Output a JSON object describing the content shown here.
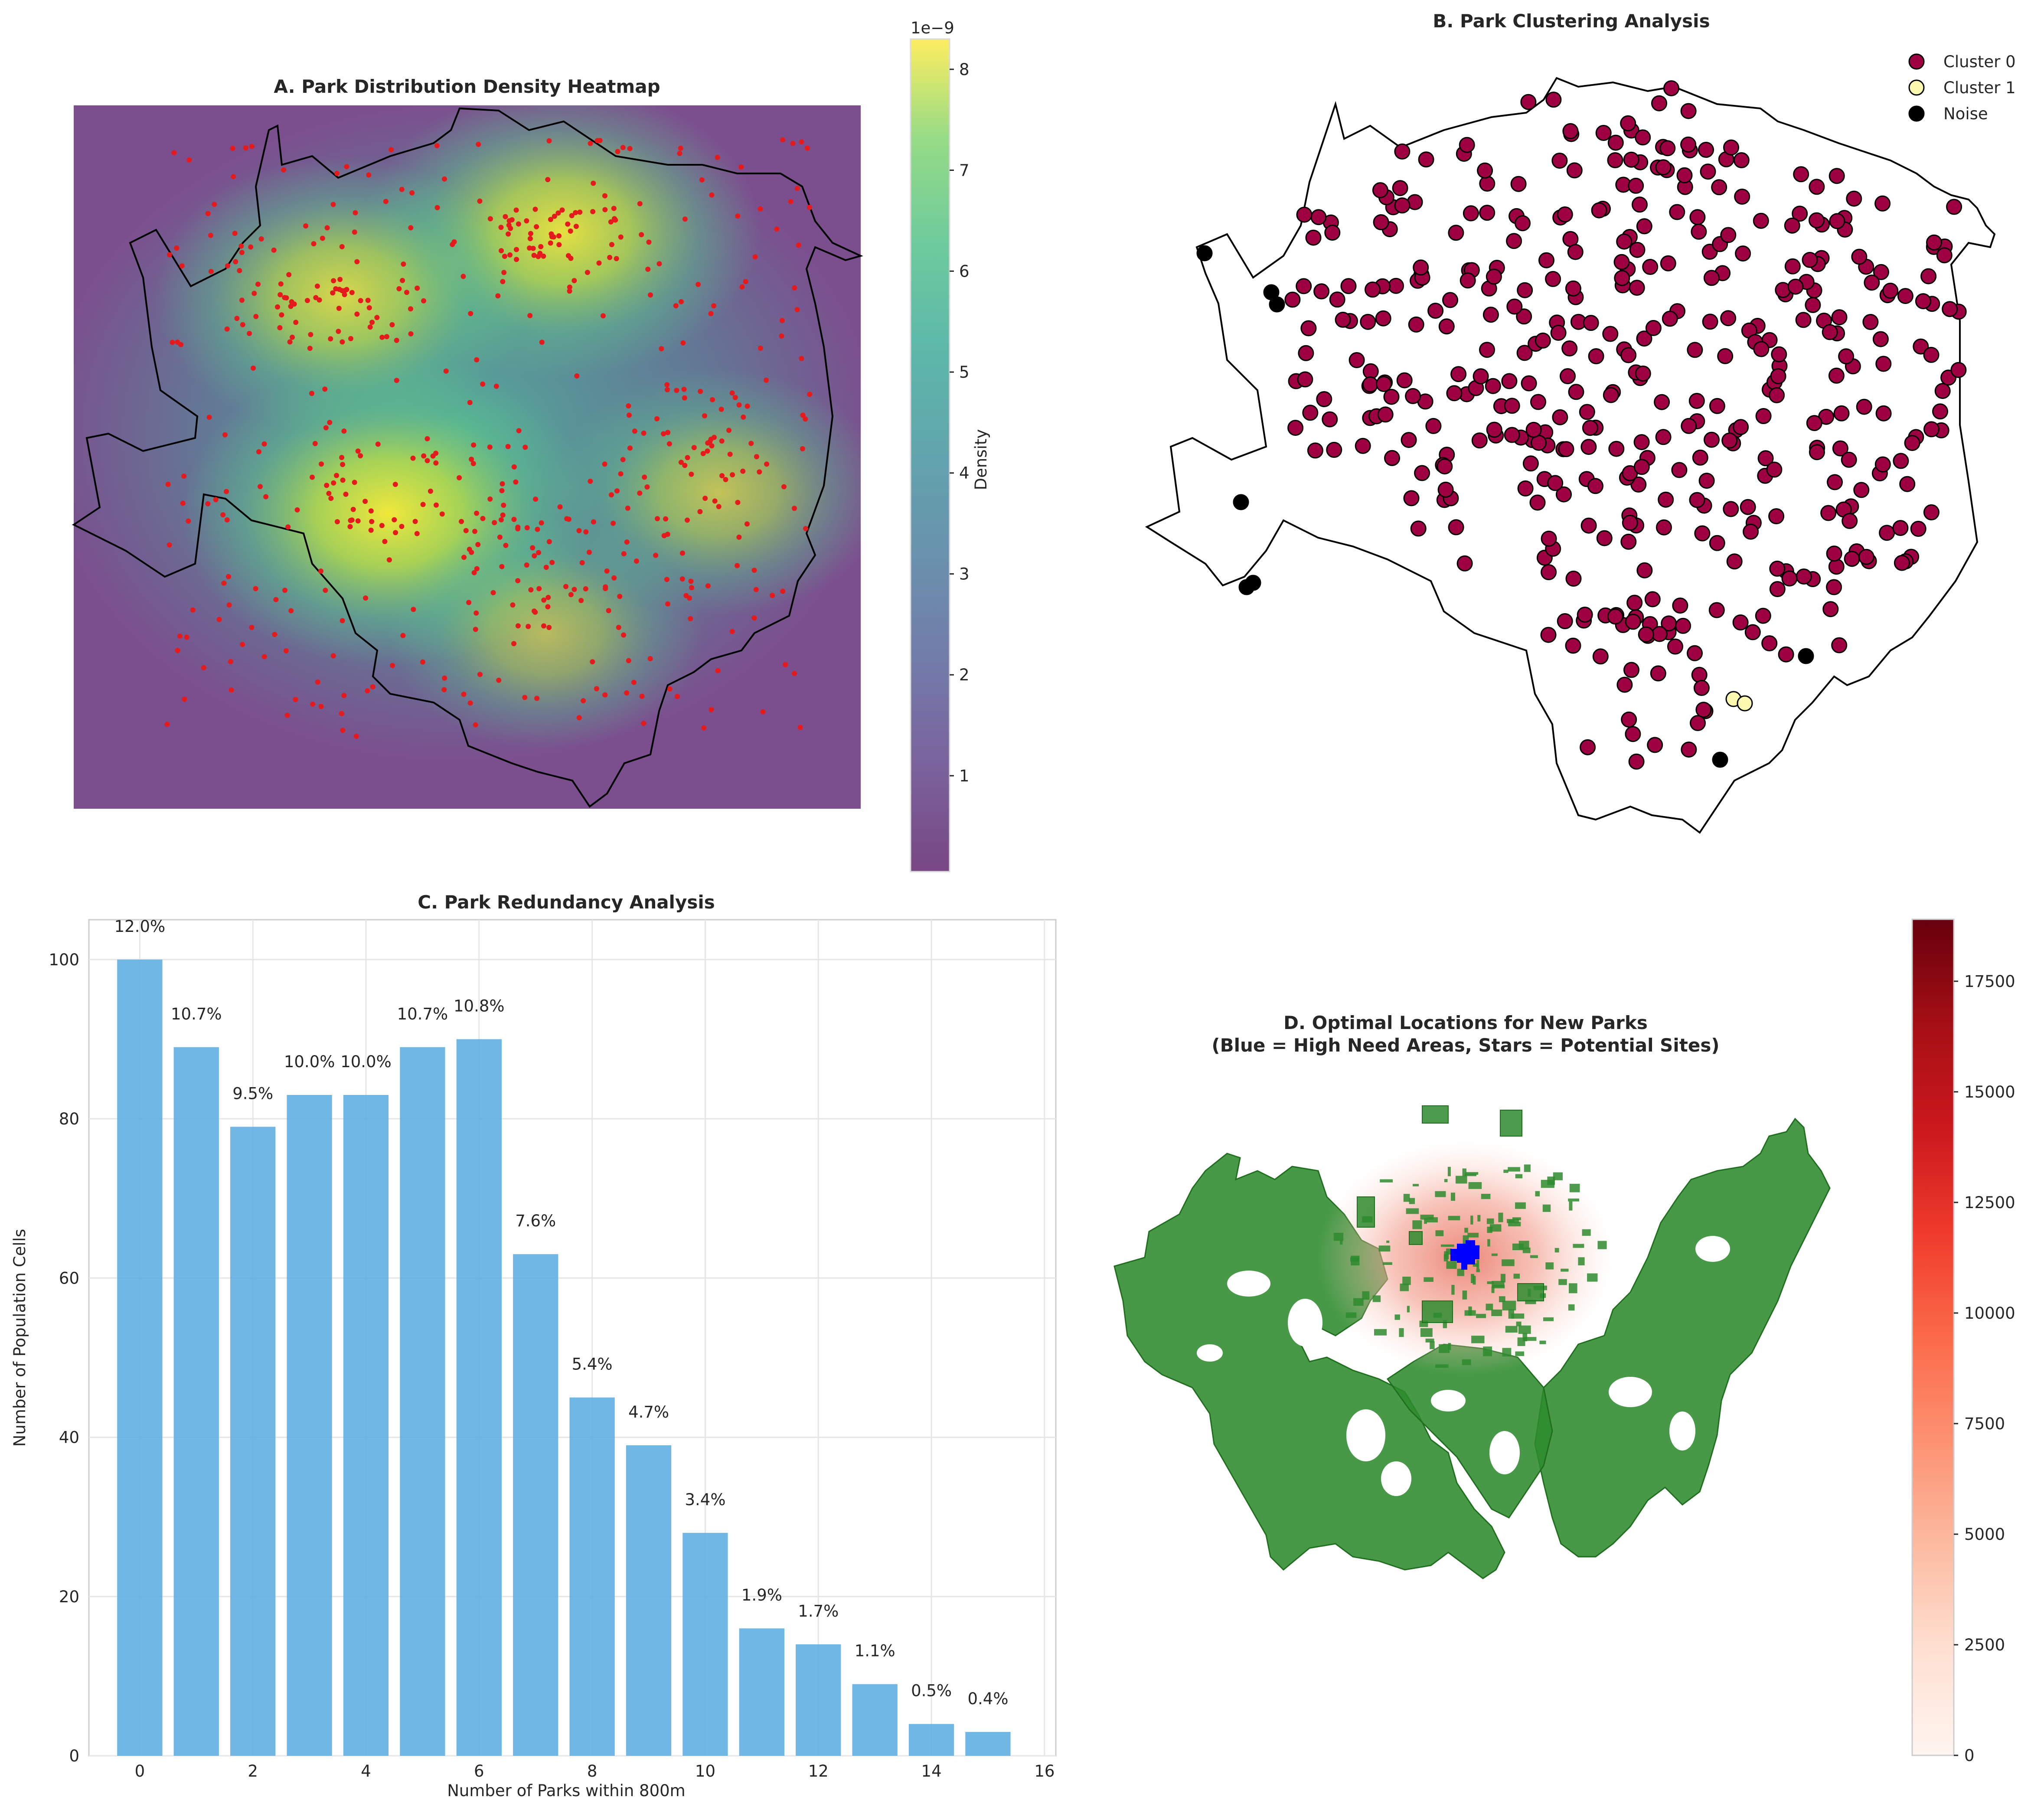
{
  "chart_data": [
    {
      "panel": "A",
      "type": "heatmap",
      "title": "A. Park Distribution Density Heatmap",
      "colorbar": {
        "label": "Density",
        "scale_label": "1e−9",
        "ticks": [
          "1",
          "2",
          "3",
          "4",
          "5",
          "6",
          "7",
          "8"
        ],
        "range": [
          0.05,
          8.3
        ],
        "colormap": "viridis"
      },
      "points_color": "#e41a1c",
      "hotspots": [
        {
          "x": 0.4,
          "y": 0.58,
          "level": 8.2
        },
        {
          "x": 0.62,
          "y": 0.18,
          "level": 7.6
        },
        {
          "x": 0.34,
          "y": 0.27,
          "level": 6.9
        },
        {
          "x": 0.82,
          "y": 0.55,
          "level": 5.6
        },
        {
          "x": 0.6,
          "y": 0.75,
          "level": 5.0
        }
      ]
    },
    {
      "panel": "B",
      "type": "scatter",
      "title": "B. Park Clustering Analysis",
      "legend": [
        {
          "name": "Cluster 0",
          "color": "#9e0142"
        },
        {
          "name": "Cluster 1",
          "color": "#fbf8b0"
        },
        {
          "name": "Noise",
          "color": "#000000"
        }
      ],
      "legend_position": "top-right"
    },
    {
      "panel": "C",
      "type": "bar",
      "title": "C. Park Redundancy Analysis",
      "xlabel": "Number of Parks within 800m",
      "ylabel": "Number of Population Cells",
      "x": [
        0,
        1,
        2,
        3,
        4,
        5,
        6,
        7,
        8,
        9,
        10,
        11,
        12,
        13,
        14,
        15
      ],
      "values": [
        100,
        89,
        79,
        83,
        83,
        89,
        90,
        63,
        45,
        39,
        28,
        16,
        14,
        9,
        4,
        3
      ],
      "labels": [
        "12.0%",
        "10.7%",
        "9.5%",
        "10.0%",
        "10.0%",
        "10.7%",
        "10.8%",
        "7.6%",
        "5.4%",
        "4.7%",
        "3.4%",
        "1.9%",
        "1.7%",
        "1.1%",
        "0.5%",
        "0.4%"
      ],
      "xticks": [
        "0",
        "2",
        "4",
        "6",
        "8",
        "10",
        "12",
        "14",
        "16"
      ],
      "yticks": [
        "0",
        "20",
        "40",
        "60",
        "80",
        "100"
      ],
      "xlim": [
        -0.9,
        16.2
      ],
      "ylim": [
        0,
        105
      ],
      "bar_color": "#5dade2",
      "grid": true
    },
    {
      "panel": "D",
      "type": "heatmap",
      "title_line1": "D. Optimal Locations for New Parks",
      "title_line2": "(Blue = High Need Areas, Stars = Potential Sites)",
      "colorbar": {
        "ticks": [
          "0",
          "2500",
          "5000",
          "7500",
          "10000",
          "12500",
          "15000",
          "17500"
        ],
        "range": [
          0,
          18900
        ],
        "colormap": "Reds"
      },
      "green_color": "#2e8b2e",
      "need_color": "#0000ff"
    }
  ]
}
